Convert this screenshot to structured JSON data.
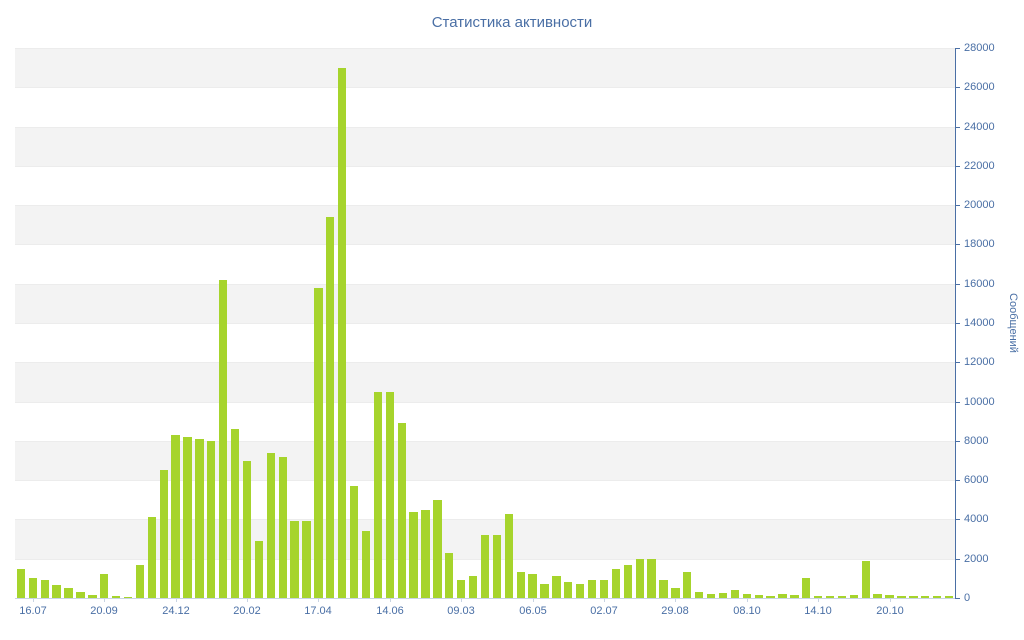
{
  "chart": {
    "title": "Статистика активности",
    "y_axis_title": "Сообщений"
  },
  "chart_data": {
    "type": "bar",
    "title": "Статистика активности",
    "ylabel": "Сообщений",
    "xlabel": "",
    "ylim": [
      0,
      28000
    ],
    "grid": "alternating-bands",
    "legend": "off",
    "bar_color": "#a6d42c",
    "band_color": "#f3f3f3",
    "gridline_color": "#ececec",
    "axis_color": "#4a6fa5",
    "x_axis_line_color": "#c9d4e3",
    "y_ticks": [
      0,
      2000,
      4000,
      6000,
      8000,
      10000,
      12000,
      14000,
      16000,
      18000,
      20000,
      22000,
      24000,
      26000,
      28000
    ],
    "x_tick_labels": [
      "16.07",
      "20.09",
      "24.12",
      "20.02",
      "17.04",
      "14.06",
      "09.03",
      "06.05",
      "02.07",
      "29.08",
      "08.10",
      "14.10",
      "20.10"
    ],
    "x_tick_indices": [
      1,
      7,
      13,
      19,
      25,
      31,
      37,
      43,
      49,
      55,
      61,
      67,
      73
    ],
    "values": [
      1500,
      1000,
      900,
      650,
      500,
      300,
      150,
      1200,
      100,
      60,
      1700,
      4100,
      6500,
      8300,
      8200,
      8100,
      8000,
      16200,
      8600,
      7000,
      2900,
      7400,
      7200,
      3900,
      3900,
      15800,
      19400,
      27000,
      5700,
      3400,
      10500,
      10500,
      8900,
      4400,
      4500,
      5000,
      2300,
      900,
      1100,
      3200,
      3200,
      4300,
      1300,
      1200,
      700,
      1100,
      800,
      700,
      900,
      900,
      1500,
      1700,
      2000,
      2000,
      900,
      500,
      1300,
      300,
      200,
      250,
      400,
      200,
      150,
      120,
      200,
      150,
      1000,
      120,
      100,
      100,
      150,
      1900,
      200,
      150,
      120,
      100,
      120,
      100,
      80
    ]
  }
}
